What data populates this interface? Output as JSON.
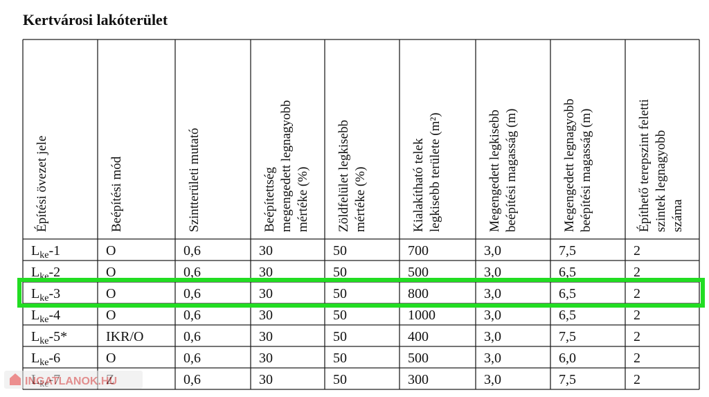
{
  "header": {
    "title": "Kertvárosi lakóterület"
  },
  "table": {
    "columns": [
      [
        "Építési övezet jele"
      ],
      [
        "Beépítési mód"
      ],
      [
        "Szintterületi mutató"
      ],
      [
        "Beépítettség",
        "megengedett legnagyobb",
        "mértéke (%)"
      ],
      [
        "Zöldfelület legkisebb",
        "mértéke (%)"
      ],
      [
        "Kialakítható telek",
        "legkisebb területe (m²)"
      ],
      [
        "Megengedett legkisebb",
        "beépítési magasság (m)"
      ],
      [
        "Megengedett legnagyobb",
        "beépítési magasság (m)"
      ],
      [
        "Építhető terepszint feletti",
        "szintek legnagyobb",
        "száma"
      ]
    ],
    "rows": [
      [
        {
          "base": "L",
          "sub": "ke",
          "suffix": "-1"
        },
        "O",
        "0,6",
        "30",
        "50",
        "700",
        "3,0",
        "7,5",
        "2"
      ],
      [
        {
          "base": "L",
          "sub": "ke",
          "suffix": "-2"
        },
        "O",
        "0,6",
        "30",
        "50",
        "500",
        "3,0",
        "6,5",
        "2"
      ],
      [
        {
          "base": "L",
          "sub": "ke",
          "suffix": "-3"
        },
        "O",
        "0,6",
        "30",
        "50",
        "800",
        "3,0",
        "6,5",
        "2"
      ],
      [
        {
          "base": "L",
          "sub": "ke",
          "suffix": "-4"
        },
        "O",
        "0,6",
        "30",
        "50",
        "1000",
        "3,0",
        "6,5",
        "2"
      ],
      [
        {
          "base": "L",
          "sub": "ke",
          "suffix": "-5*"
        },
        "IKR/O",
        "0,6",
        "30",
        "50",
        "400",
        "3,0",
        "7,5",
        "2"
      ],
      [
        {
          "base": "L",
          "sub": "ke",
          "suffix": "-6"
        },
        "O",
        "0,6",
        "30",
        "50",
        "500",
        "3,0",
        "6,0",
        "2"
      ],
      [
        {
          "base": "L",
          "sub": "ke",
          "suffix": "-7"
        },
        "Z",
        "0,6",
        "30",
        "50",
        "300",
        "3,0",
        "7,5",
        "2"
      ]
    ]
  },
  "watermark": "INGATLANOK.HU"
}
